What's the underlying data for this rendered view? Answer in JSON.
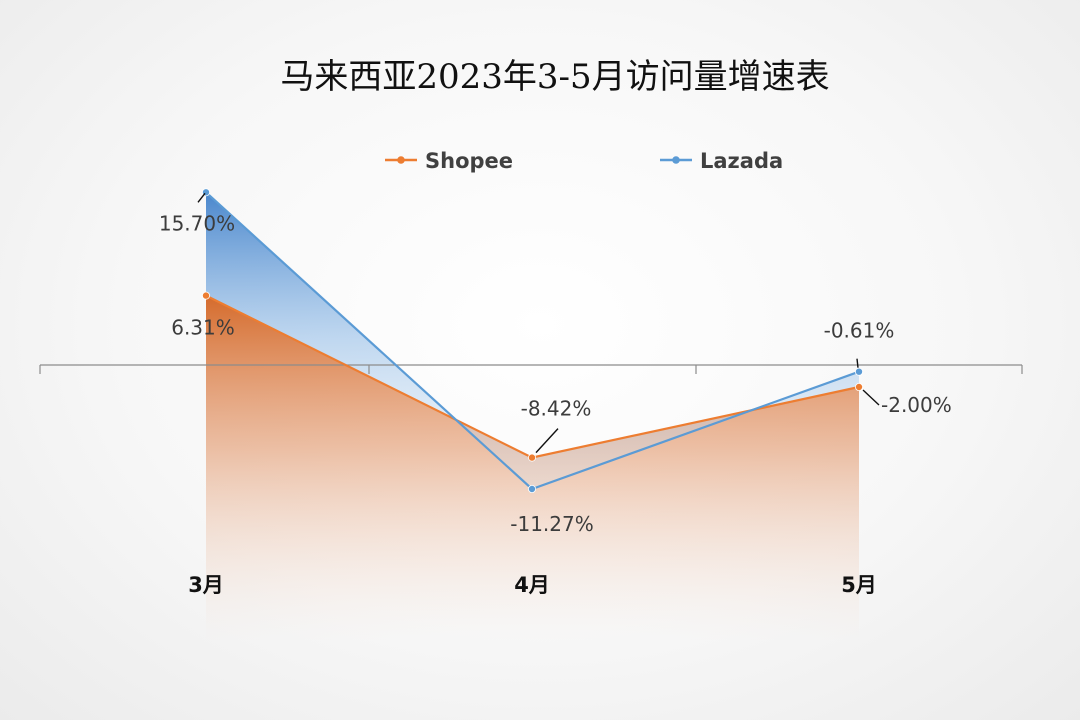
{
  "chart_data": {
    "type": "line",
    "title": "马来西亚2023年3-5月访问量增速表",
    "categories": [
      "3月",
      "4月",
      "5月"
    ],
    "series": [
      {
        "name": "Shopee",
        "values": [
          6.31,
          -8.42,
          -2.0
        ],
        "labels": [
          "6.31%",
          "-8.42%",
          "-2.00%"
        ],
        "color": "#ED7D31"
      },
      {
        "name": "Lazada",
        "values": [
          15.7,
          -11.27,
          -0.61
        ],
        "labels": [
          "15.70%",
          "-11.27%",
          "-0.61%"
        ],
        "color": "#5B9BD5"
      }
    ],
    "ylim": [
      -18,
      20
    ],
    "legend": "top",
    "grid": false,
    "unit": "%"
  }
}
